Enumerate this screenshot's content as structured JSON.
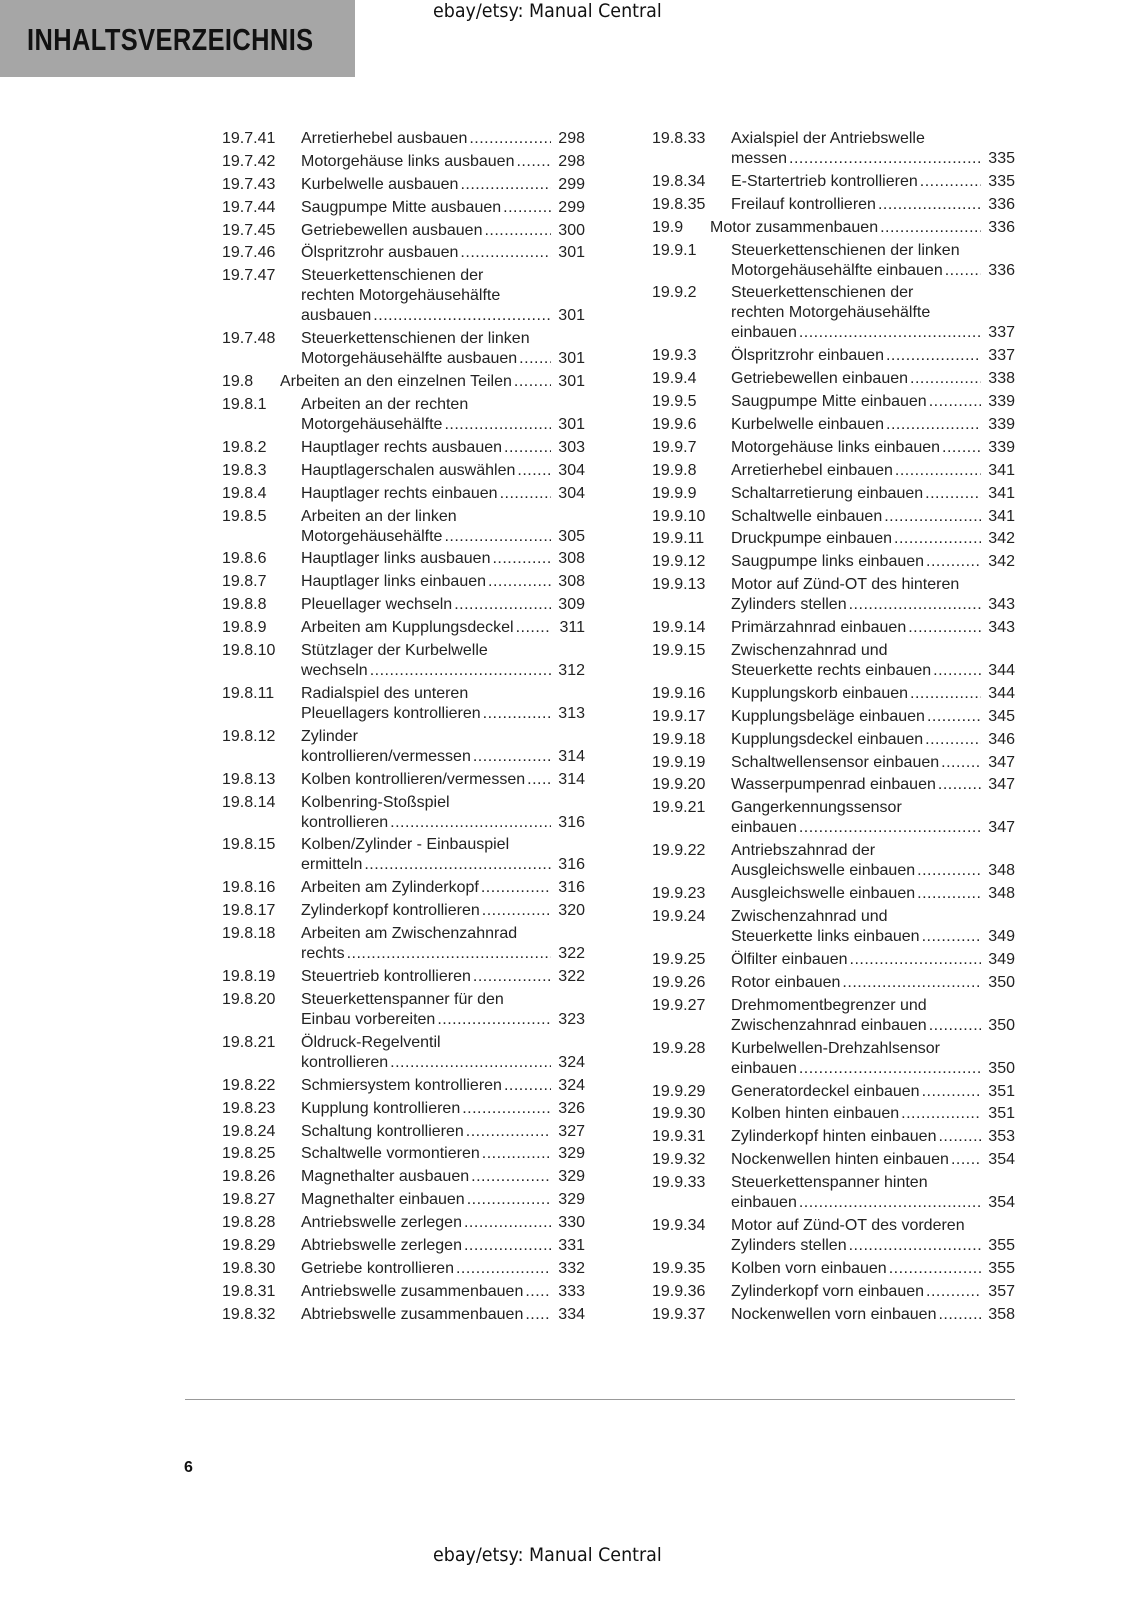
{
  "header": {
    "title": "INHALTSVERZEICHNIS",
    "watermark": "ebay/etsy: Manual Central"
  },
  "footer": {
    "page_number": "6",
    "watermark": "ebay/etsy: Manual Central"
  },
  "toc": {
    "left": [
      {
        "num": "19.7.41",
        "lines": [
          "Arretierhebel ausbauen"
        ],
        "page": "298"
      },
      {
        "num": "19.7.42",
        "lines": [
          "Motorgehäuse links ausbauen"
        ],
        "page": "298"
      },
      {
        "num": "19.7.43",
        "lines": [
          "Kurbelwelle ausbauen"
        ],
        "page": "299"
      },
      {
        "num": "19.7.44",
        "lines": [
          "Saugpumpe Mitte ausbauen"
        ],
        "page": "299"
      },
      {
        "num": "19.7.45",
        "lines": [
          "Getriebewellen ausbauen"
        ],
        "page": "300"
      },
      {
        "num": "19.7.46",
        "lines": [
          "Ölspritzrohr ausbauen"
        ],
        "page": "301"
      },
      {
        "num": "19.7.47",
        "lines": [
          "Steuerkettenschienen der",
          "rechten Motorgehäusehälfte",
          "ausbauen"
        ],
        "page": "301"
      },
      {
        "num": "19.7.48",
        "lines": [
          "Steuerkettenschienen der linken",
          "Motorgehäusehälfte ausbauen"
        ],
        "page": "301"
      },
      {
        "num": "19.8",
        "level": 2,
        "lines": [
          "Arbeiten an den einzelnen Teilen"
        ],
        "page": "301"
      },
      {
        "num": "19.8.1",
        "lines": [
          "Arbeiten an der rechten",
          "Motorgehäusehälfte"
        ],
        "page": "301"
      },
      {
        "num": "19.8.2",
        "lines": [
          "Hauptlager rechts ausbauen"
        ],
        "page": "303"
      },
      {
        "num": "19.8.3",
        "lines": [
          "Hauptlagerschalen auswählen"
        ],
        "page": "304"
      },
      {
        "num": "19.8.4",
        "lines": [
          "Hauptlager rechts einbauen"
        ],
        "page": "304"
      },
      {
        "num": "19.8.5",
        "lines": [
          "Arbeiten an der linken",
          "Motorgehäusehälfte"
        ],
        "page": "305"
      },
      {
        "num": "19.8.6",
        "lines": [
          "Hauptlager links ausbauen"
        ],
        "page": "308"
      },
      {
        "num": "19.8.7",
        "lines": [
          "Hauptlager links einbauen"
        ],
        "page": "308"
      },
      {
        "num": "19.8.8",
        "lines": [
          "Pleuellager wechseln"
        ],
        "page": "309"
      },
      {
        "num": "19.8.9",
        "lines": [
          "Arbeiten am Kupplungsdeckel"
        ],
        "page": "311"
      },
      {
        "num": "19.8.10",
        "lines": [
          "Stützlager der Kurbelwelle",
          "wechseln"
        ],
        "page": "312"
      },
      {
        "num": "19.8.11",
        "lines": [
          "Radialspiel des unteren",
          "Pleuellagers kontrollieren"
        ],
        "page": "313"
      },
      {
        "num": "19.8.12",
        "lines": [
          "Zylinder",
          "kontrollieren/vermessen"
        ],
        "page": "314"
      },
      {
        "num": "19.8.13",
        "lines": [
          "Kolben kontrollieren/vermessen"
        ],
        "page": "314"
      },
      {
        "num": "19.8.14",
        "lines": [
          "Kolbenring-Stoßspiel",
          "kontrollieren"
        ],
        "page": "316"
      },
      {
        "num": "19.8.15",
        "lines": [
          "Kolben/Zylinder - Einbauspiel",
          "ermitteln"
        ],
        "page": "316"
      },
      {
        "num": "19.8.16",
        "lines": [
          "Arbeiten am Zylinderkopf"
        ],
        "page": "316"
      },
      {
        "num": "19.8.17",
        "lines": [
          "Zylinderkopf kontrollieren"
        ],
        "page": "320"
      },
      {
        "num": "19.8.18",
        "lines": [
          "Arbeiten am Zwischenzahnrad",
          "rechts"
        ],
        "page": "322"
      },
      {
        "num": "19.8.19",
        "lines": [
          "Steuertrieb kontrollieren"
        ],
        "page": "322"
      },
      {
        "num": "19.8.20",
        "lines": [
          "Steuerkettenspanner für den",
          "Einbau vorbereiten"
        ],
        "page": "323"
      },
      {
        "num": "19.8.21",
        "lines": [
          "Öldruck-Regelventil",
          "kontrollieren"
        ],
        "page": "324"
      },
      {
        "num": "19.8.22",
        "lines": [
          "Schmiersystem kontrollieren"
        ],
        "page": "324"
      },
      {
        "num": "19.8.23",
        "lines": [
          "Kupplung kontrollieren"
        ],
        "page": "326"
      },
      {
        "num": "19.8.24",
        "lines": [
          "Schaltung kontrollieren"
        ],
        "page": "327"
      },
      {
        "num": "19.8.25",
        "lines": [
          "Schaltwelle vormontieren"
        ],
        "page": "329"
      },
      {
        "num": "19.8.26",
        "lines": [
          "Magnethalter ausbauen"
        ],
        "page": "329"
      },
      {
        "num": "19.8.27",
        "lines": [
          "Magnethalter einbauen"
        ],
        "page": "329"
      },
      {
        "num": "19.8.28",
        "lines": [
          "Antriebswelle zerlegen"
        ],
        "page": "330"
      },
      {
        "num": "19.8.29",
        "lines": [
          "Abtriebswelle zerlegen"
        ],
        "page": "331"
      },
      {
        "num": "19.8.30",
        "lines": [
          "Getriebe kontrollieren"
        ],
        "page": "332"
      },
      {
        "num": "19.8.31",
        "lines": [
          "Antriebswelle zusammenbauen"
        ],
        "page": "333"
      },
      {
        "num": "19.8.32",
        "lines": [
          "Abtriebswelle zusammenbauen"
        ],
        "page": "334"
      }
    ],
    "right": [
      {
        "num": "19.8.33",
        "lines": [
          "Axialspiel der Antriebswelle",
          "messen"
        ],
        "page": "335"
      },
      {
        "num": "19.8.34",
        "lines": [
          "E-Startertrieb kontrollieren"
        ],
        "page": "335"
      },
      {
        "num": "19.8.35",
        "lines": [
          "Freilauf kontrollieren"
        ],
        "page": "336"
      },
      {
        "num": "19.9",
        "level": 2,
        "lines": [
          "Motor zusammenbauen"
        ],
        "page": "336"
      },
      {
        "num": "19.9.1",
        "lines": [
          "Steuerkettenschienen der linken",
          "Motorgehäusehälfte einbauen"
        ],
        "page": "336"
      },
      {
        "num": "19.9.2",
        "lines": [
          "Steuerkettenschienen der",
          "rechten Motorgehäusehälfte",
          "einbauen"
        ],
        "page": "337"
      },
      {
        "num": "19.9.3",
        "lines": [
          "Ölspritzrohr einbauen"
        ],
        "page": "337"
      },
      {
        "num": "19.9.4",
        "lines": [
          "Getriebewellen einbauen"
        ],
        "page": "338"
      },
      {
        "num": "19.9.5",
        "lines": [
          "Saugpumpe Mitte einbauen"
        ],
        "page": "339"
      },
      {
        "num": "19.9.6",
        "lines": [
          "Kurbelwelle einbauen"
        ],
        "page": "339"
      },
      {
        "num": "19.9.7",
        "lines": [
          "Motorgehäuse links einbauen"
        ],
        "page": "339"
      },
      {
        "num": "19.9.8",
        "lines": [
          "Arretierhebel einbauen"
        ],
        "page": "341"
      },
      {
        "num": "19.9.9",
        "lines": [
          "Schaltarretierung einbauen"
        ],
        "page": "341"
      },
      {
        "num": "19.9.10",
        "lines": [
          "Schaltwelle einbauen"
        ],
        "page": "341"
      },
      {
        "num": "19.9.11",
        "lines": [
          "Druckpumpe einbauen"
        ],
        "page": "342"
      },
      {
        "num": "19.9.12",
        "lines": [
          "Saugpumpe links einbauen"
        ],
        "page": "342"
      },
      {
        "num": "19.9.13",
        "lines": [
          "Motor auf Zünd-OT des hinteren",
          "Zylinders stellen"
        ],
        "page": "343"
      },
      {
        "num": "19.9.14",
        "lines": [
          "Primärzahnrad einbauen"
        ],
        "page": "343"
      },
      {
        "num": "19.9.15",
        "lines": [
          "Zwischenzahnrad und",
          "Steuerkette rechts einbauen"
        ],
        "page": "344"
      },
      {
        "num": "19.9.16",
        "lines": [
          "Kupplungskorb einbauen"
        ],
        "page": "344"
      },
      {
        "num": "19.9.17",
        "lines": [
          "Kupplungsbeläge einbauen"
        ],
        "page": "345"
      },
      {
        "num": "19.9.18",
        "lines": [
          "Kupplungsdeckel einbauen"
        ],
        "page": "346"
      },
      {
        "num": "19.9.19",
        "lines": [
          "Schaltwellensensor einbauen"
        ],
        "page": "347"
      },
      {
        "num": "19.9.20",
        "lines": [
          "Wasserpumpenrad einbauen"
        ],
        "page": "347"
      },
      {
        "num": "19.9.21",
        "lines": [
          "Gangerkennungssensor",
          "einbauen"
        ],
        "page": "347"
      },
      {
        "num": "19.9.22",
        "lines": [
          "Antriebszahnrad der",
          "Ausgleichswelle einbauen"
        ],
        "page": "348"
      },
      {
        "num": "19.9.23",
        "lines": [
          "Ausgleichswelle einbauen"
        ],
        "page": "348"
      },
      {
        "num": "19.9.24",
        "lines": [
          "Zwischenzahnrad und",
          "Steuerkette links einbauen"
        ],
        "page": "349"
      },
      {
        "num": "19.9.25",
        "lines": [
          "Ölfilter einbauen"
        ],
        "page": "349"
      },
      {
        "num": "19.9.26",
        "lines": [
          "Rotor einbauen"
        ],
        "page": "350"
      },
      {
        "num": "19.9.27",
        "lines": [
          "Drehmomentbegrenzer und",
          "Zwischenzahnrad einbauen"
        ],
        "page": "350"
      },
      {
        "num": "19.9.28",
        "lines": [
          "Kurbelwellen-Drehzahlsensor",
          "einbauen"
        ],
        "page": "350"
      },
      {
        "num": "19.9.29",
        "lines": [
          "Generatordeckel einbauen"
        ],
        "page": "351"
      },
      {
        "num": "19.9.30",
        "lines": [
          "Kolben hinten einbauen"
        ],
        "page": "351"
      },
      {
        "num": "19.9.31",
        "lines": [
          "Zylinderkopf hinten einbauen"
        ],
        "page": "353"
      },
      {
        "num": "19.9.32",
        "lines": [
          "Nockenwellen hinten einbauen"
        ],
        "page": "354"
      },
      {
        "num": "19.9.33",
        "lines": [
          "Steuerkettenspanner hinten",
          "einbauen"
        ],
        "page": "354"
      },
      {
        "num": "19.9.34",
        "lines": [
          "Motor auf Zünd-OT des vorderen",
          "Zylinders stellen"
        ],
        "page": "355"
      },
      {
        "num": "19.9.35",
        "lines": [
          "Kolben vorn einbauen"
        ],
        "page": "355"
      },
      {
        "num": "19.9.36",
        "lines": [
          "Zylinderkopf vorn einbauen"
        ],
        "page": "357"
      },
      {
        "num": "19.9.37",
        "lines": [
          "Nockenwellen vorn einbauen"
        ],
        "page": "358"
      }
    ]
  }
}
